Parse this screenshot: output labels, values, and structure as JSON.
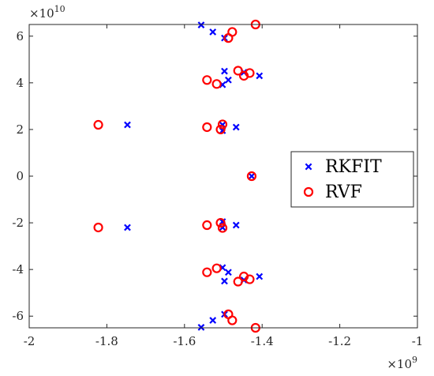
{
  "chart_data": {
    "type": "scatter",
    "x_multiplier_label": {
      "base": "×10",
      "exp": "9"
    },
    "y_multiplier_label": {
      "base": "×10",
      "exp": "10"
    },
    "xlim": [
      -2,
      -1
    ],
    "ylim": [
      -6.5,
      6.5
    ],
    "xticks": [
      -2,
      -1.8,
      -1.6,
      -1.4,
      -1.2,
      -1
    ],
    "xtick_labels": [
      "-2",
      "-1.8",
      "-1.6",
      "-1.4",
      "-1.2",
      "-1"
    ],
    "yticks": [
      -6,
      -4,
      -2,
      0,
      2,
      4,
      6
    ],
    "ytick_labels": [
      "-6",
      "-4",
      "-2",
      "0",
      "2",
      "4",
      "6"
    ],
    "grid": false,
    "legend_position": "right",
    "series": [
      {
        "name": "RKFIT",
        "marker": "x",
        "color": "#0000ff",
        "points": [
          [
            -1.557,
            6.48
          ],
          [
            -1.527,
            6.18
          ],
          [
            -1.497,
            5.92
          ],
          [
            -1.497,
            4.5
          ],
          [
            -1.487,
            4.12
          ],
          [
            -1.447,
            4.45
          ],
          [
            -1.407,
            4.3
          ],
          [
            -1.502,
            3.92
          ],
          [
            -1.747,
            2.2
          ],
          [
            -1.502,
            2.2
          ],
          [
            -1.502,
            1.95
          ],
          [
            -1.467,
            2.1
          ],
          [
            -1.427,
            0.0
          ],
          [
            -1.747,
            -2.2
          ],
          [
            -1.502,
            -2.2
          ],
          [
            -1.502,
            -1.95
          ],
          [
            -1.467,
            -2.1
          ],
          [
            -1.502,
            -3.92
          ],
          [
            -1.497,
            -4.5
          ],
          [
            -1.487,
            -4.12
          ],
          [
            -1.447,
            -4.45
          ],
          [
            -1.407,
            -4.3
          ],
          [
            -1.557,
            -6.48
          ],
          [
            -1.527,
            -6.18
          ],
          [
            -1.497,
            -5.92
          ]
        ]
      },
      {
        "name": "RVF",
        "marker": "o",
        "color": "#ff0000",
        "points": [
          [
            -1.417,
            6.5
          ],
          [
            -1.477,
            6.18
          ],
          [
            -1.487,
            5.92
          ],
          [
            -1.542,
            4.12
          ],
          [
            -1.517,
            3.95
          ],
          [
            -1.462,
            4.52
          ],
          [
            -1.447,
            4.3
          ],
          [
            -1.432,
            4.42
          ],
          [
            -1.822,
            2.2
          ],
          [
            -1.542,
            2.1
          ],
          [
            -1.502,
            2.22
          ],
          [
            -1.507,
            2.0
          ],
          [
            -1.427,
            0.0
          ],
          [
            -1.822,
            -2.2
          ],
          [
            -1.542,
            -2.1
          ],
          [
            -1.502,
            -2.22
          ],
          [
            -1.507,
            -2.0
          ],
          [
            -1.542,
            -4.12
          ],
          [
            -1.517,
            -3.95
          ],
          [
            -1.462,
            -4.52
          ],
          [
            -1.447,
            -4.3
          ],
          [
            -1.432,
            -4.42
          ],
          [
            -1.417,
            -6.5
          ],
          [
            -1.477,
            -6.18
          ],
          [
            -1.487,
            -5.92
          ]
        ]
      }
    ]
  }
}
